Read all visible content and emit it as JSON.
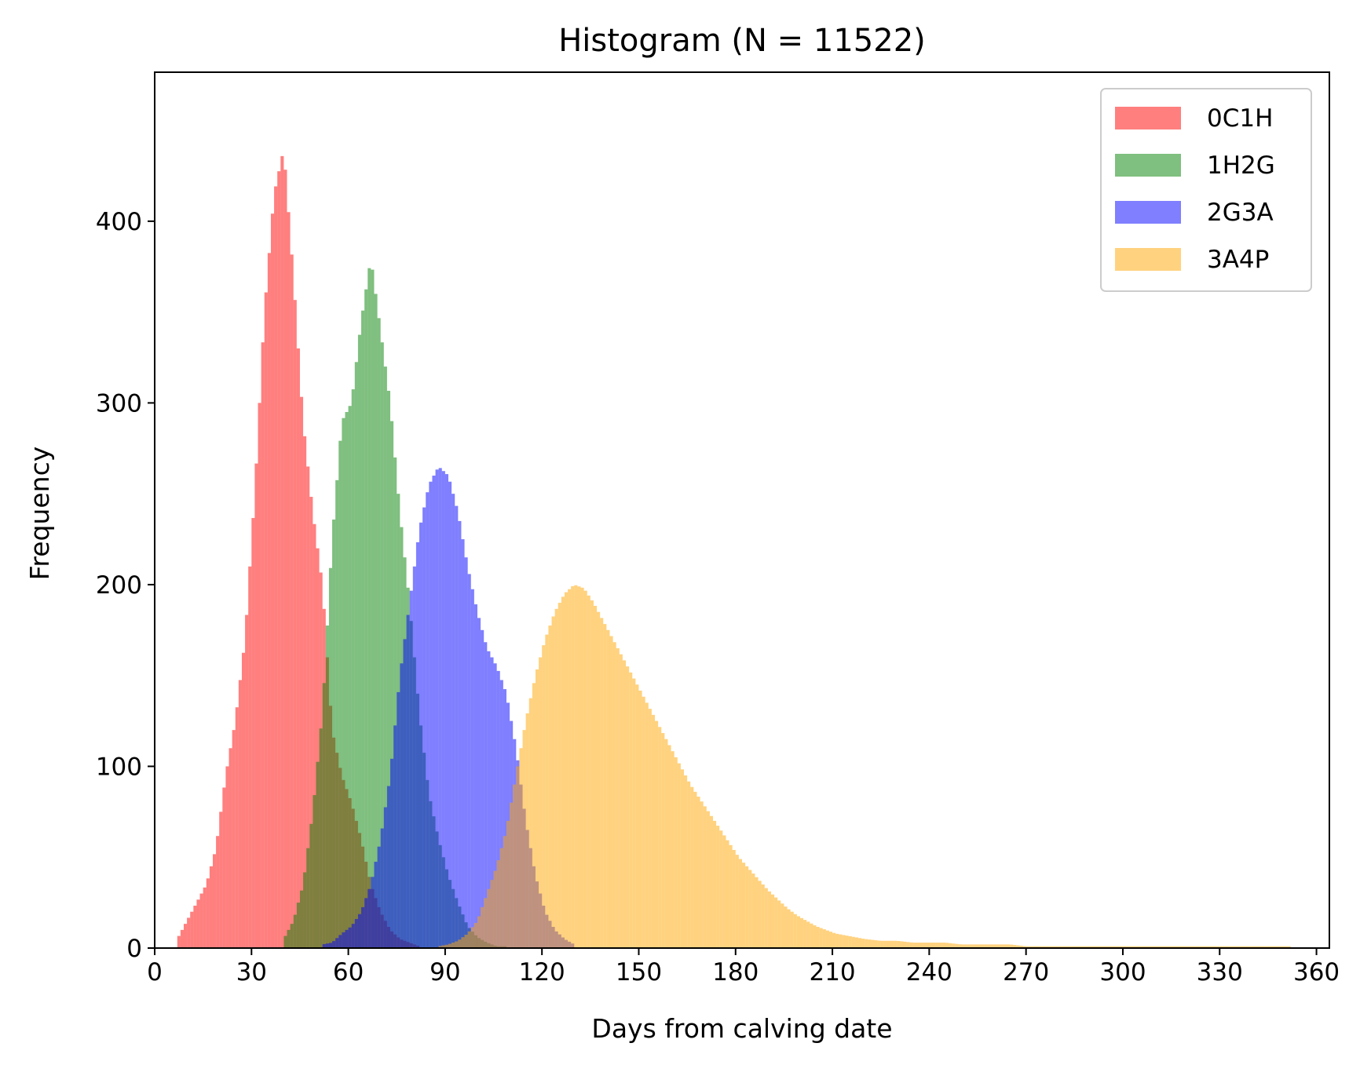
{
  "chart_data": {
    "type": "histogram",
    "title": "Histogram (N = 11522)",
    "xlabel": "Days from calving date",
    "ylabel": "Frequency",
    "xlim": [
      0,
      364
    ],
    "ylim": [
      0,
      482
    ],
    "xticks": [
      0,
      30,
      60,
      90,
      120,
      150,
      180,
      210,
      240,
      270,
      300,
      330,
      360
    ],
    "yticks": [
      0,
      100,
      200,
      300,
      400
    ],
    "bin_width_days": 1,
    "bar_opacity": 0.5,
    "grid": false,
    "legend_position": "top-right",
    "series": [
      {
        "name": "0C1H",
        "color": "#ff0000",
        "x": [
          7,
          10,
          13,
          16,
          19,
          22,
          25,
          28,
          31,
          34,
          37,
          40,
          43,
          46,
          49,
          52,
          55,
          58,
          61,
          64,
          67,
          70,
          73,
          76,
          79,
          82
        ],
        "values": [
          5,
          15,
          25,
          35,
          55,
          95,
          125,
          170,
          250,
          350,
          415,
          440,
          370,
          290,
          240,
          200,
          120,
          95,
          80,
          60,
          35,
          20,
          10,
          5,
          3,
          1
        ]
      },
      {
        "name": "1H2G",
        "color": "#008000",
        "x": [
          40,
          43,
          46,
          49,
          52,
          55,
          58,
          61,
          64,
          67,
          70,
          73,
          76,
          79,
          82,
          85,
          88,
          91,
          94,
          97,
          100,
          103,
          106,
          109
        ],
        "values": [
          5,
          15,
          35,
          75,
          130,
          225,
          290,
          300,
          345,
          380,
          340,
          300,
          240,
          190,
          130,
          85,
          60,
          40,
          25,
          12,
          6,
          3,
          1,
          1
        ]
      },
      {
        "name": "2G3A",
        "color": "#0000ff",
        "x": [
          52,
          55,
          58,
          61,
          64,
          67,
          70,
          73,
          76,
          79,
          82,
          85,
          88,
          91,
          94,
          97,
          100,
          103,
          106,
          109,
          112,
          115,
          118,
          121,
          124,
          127,
          130
        ],
        "values": [
          2,
          3,
          8,
          12,
          20,
          35,
          60,
          95,
          150,
          190,
          230,
          255,
          265,
          260,
          240,
          210,
          185,
          165,
          155,
          140,
          110,
          70,
          40,
          20,
          10,
          5,
          2
        ]
      },
      {
        "name": "3A4P",
        "color": "#ffa500",
        "x": [
          88,
          91,
          94,
          97,
          100,
          103,
          106,
          109,
          112,
          115,
          118,
          121,
          124,
          127,
          130,
          133,
          136,
          139,
          142,
          145,
          148,
          151,
          154,
          157,
          160,
          163,
          166,
          169,
          172,
          175,
          178,
          181,
          184,
          187,
          190,
          193,
          196,
          199,
          202,
          205,
          208,
          211,
          214,
          217,
          220,
          225,
          230,
          235,
          240,
          245,
          250,
          255,
          260,
          265,
          270,
          275,
          280,
          285,
          290,
          300,
          310,
          320,
          330,
          340,
          352
        ],
        "values": [
          1,
          2,
          4,
          8,
          15,
          30,
          45,
          65,
          95,
          125,
          150,
          170,
          185,
          195,
          200,
          198,
          190,
          180,
          170,
          160,
          150,
          140,
          130,
          120,
          110,
          100,
          90,
          82,
          74,
          66,
          58,
          50,
          44,
          38,
          32,
          27,
          22,
          18,
          15,
          12,
          10,
          8,
          7,
          6,
          5,
          4,
          4,
          3,
          3,
          3,
          2,
          2,
          2,
          2,
          1,
          1,
          1,
          1,
          1,
          1,
          1,
          1,
          1,
          1,
          1
        ]
      }
    ]
  }
}
